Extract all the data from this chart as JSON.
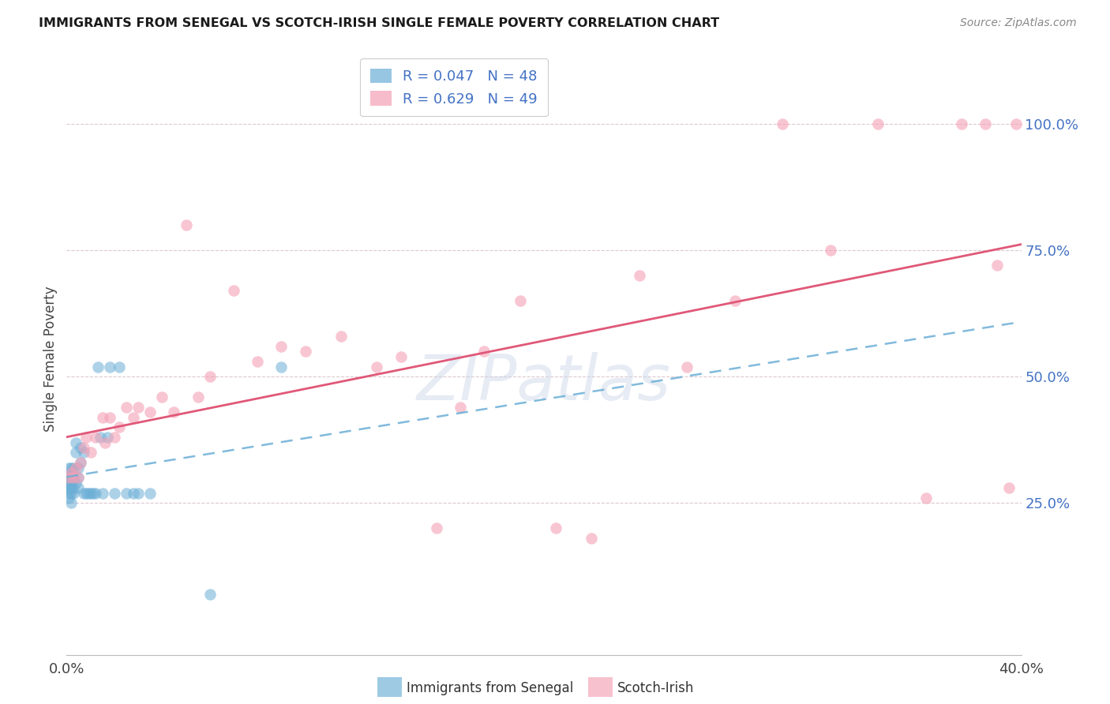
{
  "title": "IMMIGRANTS FROM SENEGAL VS SCOTCH-IRISH SINGLE FEMALE POVERTY CORRELATION CHART",
  "source": "Source: ZipAtlas.com",
  "ylabel": "Single Female Poverty",
  "ytick_labels": [
    "100.0%",
    "75.0%",
    "50.0%",
    "25.0%"
  ],
  "ytick_values": [
    1.0,
    0.75,
    0.5,
    0.25
  ],
  "xlim": [
    0.0,
    0.4
  ],
  "ylim": [
    -0.05,
    1.12
  ],
  "watermark": "ZIPatlas",
  "senegal_R": 0.047,
  "senegal_N": 48,
  "scotchirish_R": 0.629,
  "scotchirish_N": 49,
  "senegal_color": "#6baed6",
  "scotchirish_color": "#f4a0b5",
  "trendline_senegal_color": "#6baed6",
  "trendline_scotchirish_color": "#e05878",
  "senegal_x": [
    0.0,
    0.0,
    0.0,
    0.001,
    0.001,
    0.001,
    0.001,
    0.001,
    0.001,
    0.001,
    0.002,
    0.002,
    0.002,
    0.002,
    0.002,
    0.002,
    0.003,
    0.003,
    0.003,
    0.003,
    0.004,
    0.004,
    0.004,
    0.005,
    0.005,
    0.005,
    0.006,
    0.006,
    0.007,
    0.007,
    0.008,
    0.009,
    0.01,
    0.011,
    0.012,
    0.013,
    0.014,
    0.015,
    0.017,
    0.018,
    0.02,
    0.022,
    0.025,
    0.028,
    0.03,
    0.035,
    0.06,
    0.09
  ],
  "senegal_y": [
    0.29,
    0.3,
    0.28,
    0.3,
    0.32,
    0.28,
    0.29,
    0.27,
    0.31,
    0.26,
    0.3,
    0.32,
    0.29,
    0.28,
    0.27,
    0.25,
    0.3,
    0.32,
    0.28,
    0.27,
    0.35,
    0.37,
    0.29,
    0.3,
    0.32,
    0.28,
    0.36,
    0.33,
    0.35,
    0.27,
    0.27,
    0.27,
    0.27,
    0.27,
    0.27,
    0.52,
    0.38,
    0.27,
    0.38,
    0.52,
    0.27,
    0.52,
    0.27,
    0.27,
    0.27,
    0.27,
    0.07,
    0.52
  ],
  "scotchirish_x": [
    0.001,
    0.002,
    0.003,
    0.004,
    0.005,
    0.006,
    0.007,
    0.008,
    0.01,
    0.012,
    0.015,
    0.016,
    0.018,
    0.02,
    0.022,
    0.025,
    0.028,
    0.03,
    0.035,
    0.04,
    0.045,
    0.05,
    0.055,
    0.06,
    0.07,
    0.08,
    0.09,
    0.1,
    0.115,
    0.13,
    0.14,
    0.155,
    0.165,
    0.175,
    0.19,
    0.205,
    0.22,
    0.24,
    0.26,
    0.28,
    0.3,
    0.32,
    0.34,
    0.36,
    0.375,
    0.385,
    0.39,
    0.395,
    0.398
  ],
  "scotchirish_y": [
    0.3,
    0.31,
    0.3,
    0.32,
    0.3,
    0.33,
    0.36,
    0.38,
    0.35,
    0.38,
    0.42,
    0.37,
    0.42,
    0.38,
    0.4,
    0.44,
    0.42,
    0.44,
    0.43,
    0.46,
    0.43,
    0.8,
    0.46,
    0.5,
    0.67,
    0.53,
    0.56,
    0.55,
    0.58,
    0.52,
    0.54,
    0.2,
    0.44,
    0.55,
    0.65,
    0.2,
    0.18,
    0.7,
    0.52,
    0.65,
    1.0,
    0.75,
    1.0,
    0.26,
    1.0,
    1.0,
    0.72,
    0.28,
    1.0
  ]
}
